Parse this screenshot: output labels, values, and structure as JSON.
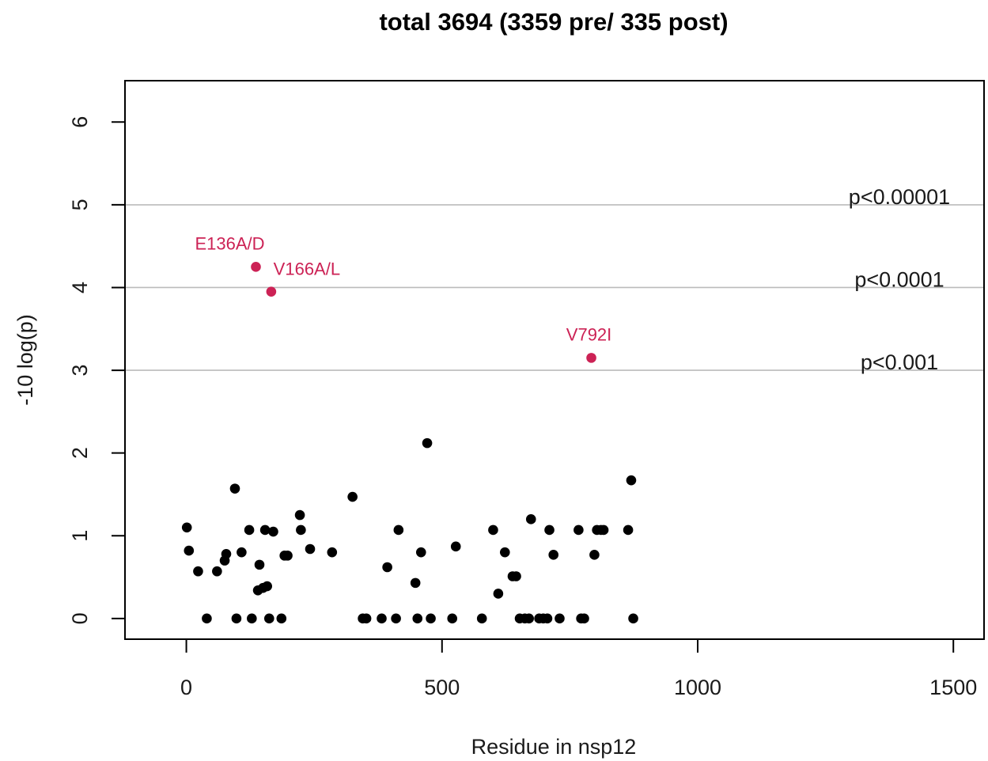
{
  "chart_data": {
    "type": "scatter",
    "title": "total 3694 (3359 pre/ 335 post)",
    "xlabel": "Residue in nsp12",
    "ylabel": "-10 log(p)",
    "xlim": [
      -120,
      1560
    ],
    "ylim": [
      -0.25,
      6.5
    ],
    "xticks": [
      0,
      500,
      1000,
      1500
    ],
    "yticks": [
      0,
      1,
      2,
      3,
      4,
      5,
      6
    ],
    "grid": false,
    "legend": "none",
    "colors": {
      "points": "#000000",
      "highlight": "#cc2255",
      "threshold_line": "#bbbbbb"
    },
    "thresholds": [
      {
        "y": 5,
        "label": "p<0.00001"
      },
      {
        "y": 4,
        "label": "p<0.0001"
      },
      {
        "y": 3,
        "label": "p<0.001"
      }
    ],
    "highlighted": [
      {
        "x": 136,
        "y": 4.25,
        "label": "E136A/D"
      },
      {
        "x": 166,
        "y": 3.95,
        "label": "V166A/L"
      },
      {
        "x": 792,
        "y": 3.15,
        "label": "V792I"
      }
    ],
    "points": [
      [
        1,
        1.1
      ],
      [
        5,
        0.82
      ],
      [
        23,
        0.57
      ],
      [
        40,
        0
      ],
      [
        60,
        0.57
      ],
      [
        75,
        0.7
      ],
      [
        78,
        0.78
      ],
      [
        95,
        1.57
      ],
      [
        98,
        0
      ],
      [
        108,
        0.8
      ],
      [
        123,
        1.07
      ],
      [
        128,
        0
      ],
      [
        140,
        0.34
      ],
      [
        143,
        0.65
      ],
      [
        150,
        0.37
      ],
      [
        154,
        1.07
      ],
      [
        158,
        0.39
      ],
      [
        162,
        0
      ],
      [
        170,
        1.05
      ],
      [
        186,
        0
      ],
      [
        192,
        0.76
      ],
      [
        198,
        0.76
      ],
      [
        222,
        1.25
      ],
      [
        224,
        1.07
      ],
      [
        242,
        0.84
      ],
      [
        285,
        0.8
      ],
      [
        325,
        1.47
      ],
      [
        345,
        0
      ],
      [
        352,
        0
      ],
      [
        382,
        0
      ],
      [
        393,
        0.62
      ],
      [
        410,
        0
      ],
      [
        415,
        1.07
      ],
      [
        448,
        0.43
      ],
      [
        452,
        0
      ],
      [
        459,
        0.8
      ],
      [
        471,
        2.12
      ],
      [
        478,
        0
      ],
      [
        520,
        0
      ],
      [
        527,
        0.87
      ],
      [
        578,
        0
      ],
      [
        600,
        1.07
      ],
      [
        610,
        0.3
      ],
      [
        623,
        0.8
      ],
      [
        638,
        0.51
      ],
      [
        645,
        0.51
      ],
      [
        652,
        0
      ],
      [
        662,
        0
      ],
      [
        670,
        0
      ],
      [
        674,
        1.2
      ],
      [
        690,
        0
      ],
      [
        698,
        0
      ],
      [
        706,
        0
      ],
      [
        710,
        1.07
      ],
      [
        718,
        0.77
      ],
      [
        730,
        0
      ],
      [
        767,
        1.07
      ],
      [
        772,
        0
      ],
      [
        778,
        0
      ],
      [
        798,
        0.77
      ],
      [
        803,
        1.07
      ],
      [
        811,
        1.07
      ],
      [
        816,
        1.07
      ],
      [
        864,
        1.07
      ],
      [
        870,
        1.67
      ],
      [
        874,
        0
      ]
    ]
  }
}
